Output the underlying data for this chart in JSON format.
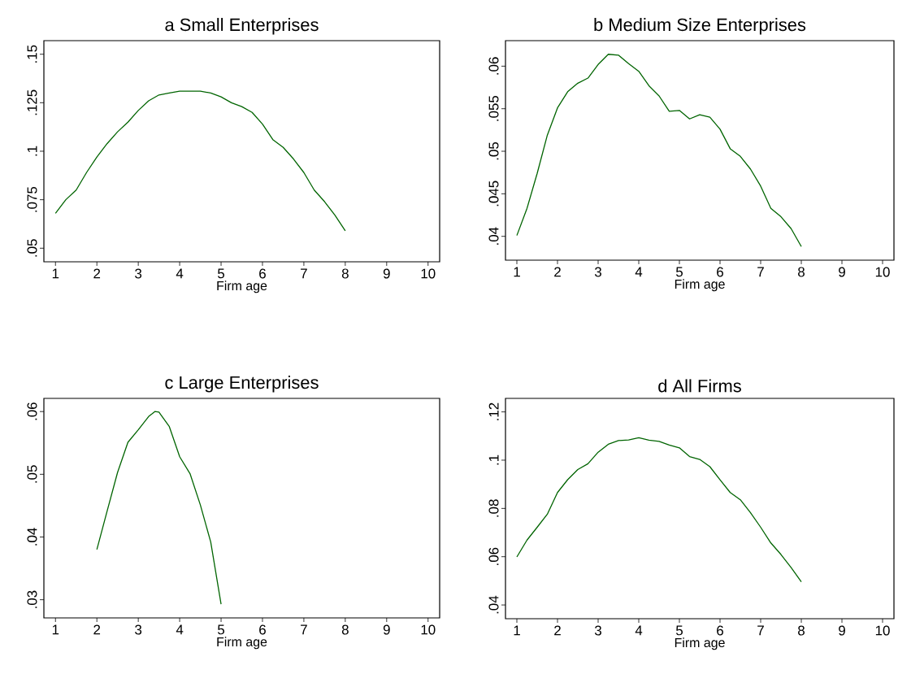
{
  "chart_data": [
    {
      "type": "line",
      "title": "a    Small Enterprises",
      "xlabel": "Firm age",
      "color": "#006400",
      "xlim": [
        0.72,
        10.28
      ],
      "ylim": [
        0.043,
        0.157
      ],
      "xticks": [
        1,
        2,
        3,
        4,
        5,
        6,
        7,
        8,
        9,
        10
      ],
      "yticks": [
        {
          "value": 0.05,
          "label": ".05"
        },
        {
          "value": 0.075,
          "label": ".075"
        },
        {
          "value": 0.1,
          "label": ".1"
        },
        {
          "value": 0.125,
          "label": ".125"
        },
        {
          "value": 0.15,
          "label": ".15"
        }
      ],
      "x": [
        1,
        1.25,
        1.5,
        1.75,
        2,
        2.25,
        2.5,
        2.75,
        3,
        3.25,
        3.5,
        3.75,
        4,
        4.25,
        4.5,
        4.75,
        5,
        5.25,
        5.5,
        5.75,
        6,
        6.25,
        6.5,
        6.75,
        7,
        7.25,
        7.5,
        7.75,
        8
      ],
      "values": [
        0.068,
        0.075,
        0.08,
        0.089,
        0.097,
        0.104,
        0.11,
        0.115,
        0.121,
        0.126,
        0.129,
        0.13,
        0.131,
        0.131,
        0.131,
        0.13,
        0.128,
        0.125,
        0.123,
        0.12,
        0.114,
        0.106,
        0.102,
        0.096,
        0.089,
        0.08,
        0.074,
        0.067,
        0.059
      ]
    },
    {
      "type": "line",
      "title": "b    Medium Size Enterprises",
      "xlabel": "Firm age",
      "color": "#006400",
      "xlim": [
        0.72,
        10.28
      ],
      "ylim": [
        0.0372,
        0.063
      ],
      "xticks": [
        1,
        2,
        3,
        4,
        5,
        6,
        7,
        8,
        9,
        10
      ],
      "yticks": [
        {
          "value": 0.04,
          "label": ".04"
        },
        {
          "value": 0.045,
          "label": ".045"
        },
        {
          "value": 0.05,
          "label": ".05"
        },
        {
          "value": 0.055,
          "label": ".055"
        },
        {
          "value": 0.06,
          "label": ".06"
        }
      ],
      "x": [
        1,
        1.25,
        1.5,
        1.75,
        2,
        2.25,
        2.5,
        2.75,
        3,
        3.25,
        3.5,
        3.75,
        4,
        4.25,
        4.5,
        4.75,
        5,
        5.25,
        5.5,
        5.75,
        6,
        6.25,
        6.5,
        6.75,
        7,
        7.25,
        7.5,
        7.75,
        8
      ],
      "values": [
        0.0401,
        0.0433,
        0.0474,
        0.0519,
        0.0551,
        0.057,
        0.058,
        0.0586,
        0.0602,
        0.0614,
        0.0613,
        0.0603,
        0.0594,
        0.0577,
        0.0565,
        0.0547,
        0.0548,
        0.0538,
        0.0543,
        0.054,
        0.0526,
        0.0503,
        0.0494,
        0.0479,
        0.0459,
        0.0433,
        0.0423,
        0.0409,
        0.0388
      ]
    },
    {
      "type": "line",
      "title": "c    Large Enterprises",
      "xlabel": "Firm age",
      "color": "#006400",
      "xlim": [
        0.72,
        10.28
      ],
      "ylim": [
        0.0271,
        0.0621
      ],
      "xticks": [
        1,
        2,
        3,
        4,
        5,
        6,
        7,
        8,
        9,
        10
      ],
      "yticks": [
        {
          "value": 0.03,
          "label": ".03"
        },
        {
          "value": 0.04,
          "label": ".04"
        },
        {
          "value": 0.05,
          "label": ".05"
        },
        {
          "value": 0.06,
          "label": ".06"
        }
      ],
      "x": [
        2,
        2.25,
        2.5,
        2.75,
        3,
        3.25,
        3.4,
        3.5,
        3.75,
        4,
        4.25,
        4.5,
        4.75,
        5
      ],
      "values": [
        0.038,
        0.0442,
        0.0503,
        0.0551,
        0.0571,
        0.0592,
        0.06,
        0.0599,
        0.0576,
        0.0528,
        0.0501,
        0.0451,
        0.0392,
        0.0293
      ]
    },
    {
      "type": "line",
      "title": "d    All Firms",
      "xlabel": "Firm age",
      "color": "#006400",
      "xlim": [
        0.72,
        10.28
      ],
      "ylim": [
        0.0343,
        0.1256
      ],
      "xticks": [
        1,
        2,
        3,
        4,
        5,
        6,
        7,
        8,
        9,
        10
      ],
      "yticks": [
        {
          "value": 0.04,
          "label": ".04"
        },
        {
          "value": 0.06,
          "label": ".06"
        },
        {
          "value": 0.08,
          "label": ".08"
        },
        {
          "value": 0.1,
          "label": ".1"
        },
        {
          "value": 0.12,
          "label": ".12"
        }
      ],
      "x": [
        1,
        1.25,
        1.5,
        1.75,
        2,
        2.25,
        2.5,
        2.75,
        3,
        3.25,
        3.5,
        3.75,
        4,
        4.25,
        4.5,
        4.75,
        5,
        5.25,
        5.5,
        5.75,
        6,
        6.25,
        6.5,
        6.75,
        7,
        7.25,
        7.5,
        7.75,
        8
      ],
      "values": [
        0.0599,
        0.0669,
        0.0722,
        0.0776,
        0.0866,
        0.0919,
        0.0961,
        0.0985,
        0.1033,
        0.1066,
        0.1081,
        0.1084,
        0.1093,
        0.1083,
        0.1078,
        0.1063,
        0.1051,
        0.1015,
        0.1003,
        0.0973,
        0.0919,
        0.0866,
        0.0836,
        0.0782,
        0.0722,
        0.0657,
        0.0609,
        0.0555,
        0.0496
      ]
    }
  ]
}
